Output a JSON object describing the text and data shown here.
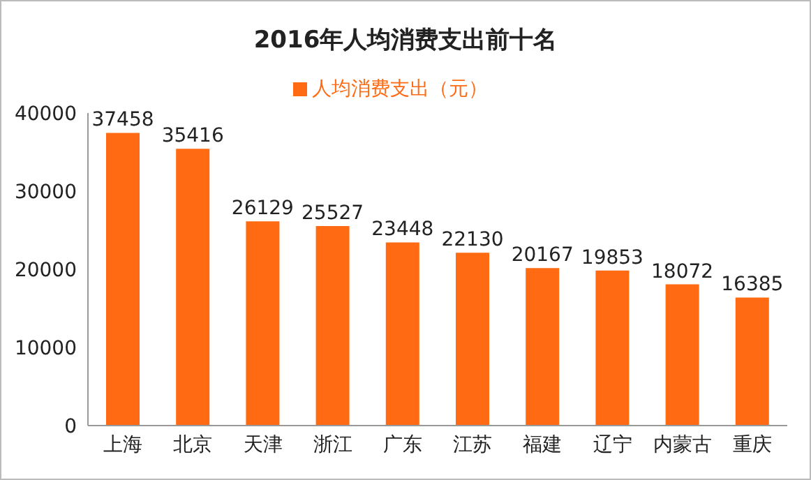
{
  "chart_data": {
    "type": "bar",
    "title": "2016年人均消费支出前十名",
    "categories": [
      "上海",
      "北京",
      "天津",
      "浙江",
      "广东",
      "江苏",
      "福建",
      "辽宁",
      "内蒙古",
      "重庆"
    ],
    "series": [
      {
        "name": "人均消费支出（元）",
        "color": "#ff6a13",
        "values": [
          37458,
          35416,
          26129,
          25527,
          23448,
          22130,
          20167,
          19853,
          18072,
          16385
        ]
      }
    ],
    "ylim": [
      0,
      40000
    ],
    "yticks": [
      0,
      10000,
      20000,
      30000,
      40000
    ],
    "data_labels": true,
    "legend": "top"
  }
}
